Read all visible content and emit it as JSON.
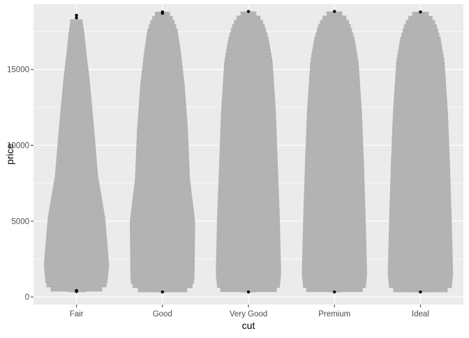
{
  "chart_data": {
    "type": "boxplot",
    "xlabel": "cut",
    "ylabel": "price",
    "categories": [
      "Fair",
      "Good",
      "Very Good",
      "Premium",
      "Ideal"
    ],
    "ylim": [
      -500,
      19300
    ],
    "yticks": [
      0,
      5000,
      10000,
      15000
    ],
    "ytick_labels": [
      "0",
      "5000",
      "10000",
      "15000"
    ],
    "grid": true,
    "background": "#ebebeb",
    "grid_color": "#ffffff",
    "fill_color": "#b3b3b3",
    "point_color": "#000000",
    "series": [
      {
        "category": "Fair",
        "min": 340,
        "max": 18300,
        "profile": [
          [
            340,
            0.14
          ],
          [
            420,
            0.66
          ],
          [
            560,
            0.84
          ],
          [
            850,
            0.94
          ],
          [
            2100,
            1.0
          ],
          [
            5200,
            0.88
          ],
          [
            8000,
            0.66
          ],
          [
            11600,
            0.52
          ],
          [
            14400,
            0.4
          ],
          [
            15800,
            0.32
          ],
          [
            17400,
            0.24
          ],
          [
            18300,
            0.18
          ]
        ],
        "outliers": [
          18400,
          18570,
          360,
          420
        ]
      },
      {
        "category": "Good",
        "min": 330,
        "max": 18800,
        "profile": [
          [
            330,
            0.14
          ],
          [
            400,
            0.58
          ],
          [
            480,
            0.78
          ],
          [
            650,
            0.9
          ],
          [
            1100,
            0.98
          ],
          [
            5000,
            1.0
          ],
          [
            7800,
            0.84
          ],
          [
            11000,
            0.78
          ],
          [
            14000,
            0.68
          ],
          [
            16200,
            0.56
          ],
          [
            17600,
            0.46
          ],
          [
            18300,
            0.34
          ],
          [
            18700,
            0.22
          ],
          [
            18800,
            0.14
          ]
        ],
        "outliers": [
          18700,
          18790,
          330
        ]
      },
      {
        "category": "Very Good",
        "min": 330,
        "max": 18820,
        "profile": [
          [
            330,
            0.14
          ],
          [
            400,
            0.72
          ],
          [
            500,
            0.88
          ],
          [
            700,
            0.96
          ],
          [
            1500,
            1.0
          ],
          [
            5300,
            0.96
          ],
          [
            8600,
            0.9
          ],
          [
            12200,
            0.84
          ],
          [
            15500,
            0.74
          ],
          [
            17000,
            0.62
          ],
          [
            18000,
            0.48
          ],
          [
            18500,
            0.34
          ],
          [
            18800,
            0.18
          ]
        ],
        "outliers": [
          18820,
          330
        ]
      },
      {
        "category": "Premium",
        "min": 330,
        "max": 18820,
        "profile": [
          [
            330,
            0.14
          ],
          [
            400,
            0.72
          ],
          [
            500,
            0.88
          ],
          [
            700,
            0.96
          ],
          [
            1500,
            1.0
          ],
          [
            4900,
            0.96
          ],
          [
            9000,
            0.9
          ],
          [
            12200,
            0.84
          ],
          [
            15500,
            0.74
          ],
          [
            17000,
            0.62
          ],
          [
            18000,
            0.48
          ],
          [
            18500,
            0.34
          ],
          [
            18800,
            0.18
          ]
        ],
        "outliers": [
          18820,
          330
        ]
      },
      {
        "category": "Ideal",
        "min": 330,
        "max": 18800,
        "profile": [
          [
            330,
            0.14
          ],
          [
            400,
            0.72
          ],
          [
            500,
            0.88
          ],
          [
            700,
            0.96
          ],
          [
            1500,
            1.0
          ],
          [
            4900,
            0.96
          ],
          [
            9000,
            0.9
          ],
          [
            12200,
            0.84
          ],
          [
            15500,
            0.74
          ],
          [
            17000,
            0.62
          ],
          [
            18000,
            0.48
          ],
          [
            18500,
            0.34
          ],
          [
            18800,
            0.18
          ]
        ],
        "outliers": [
          18790,
          330
        ]
      }
    ]
  }
}
